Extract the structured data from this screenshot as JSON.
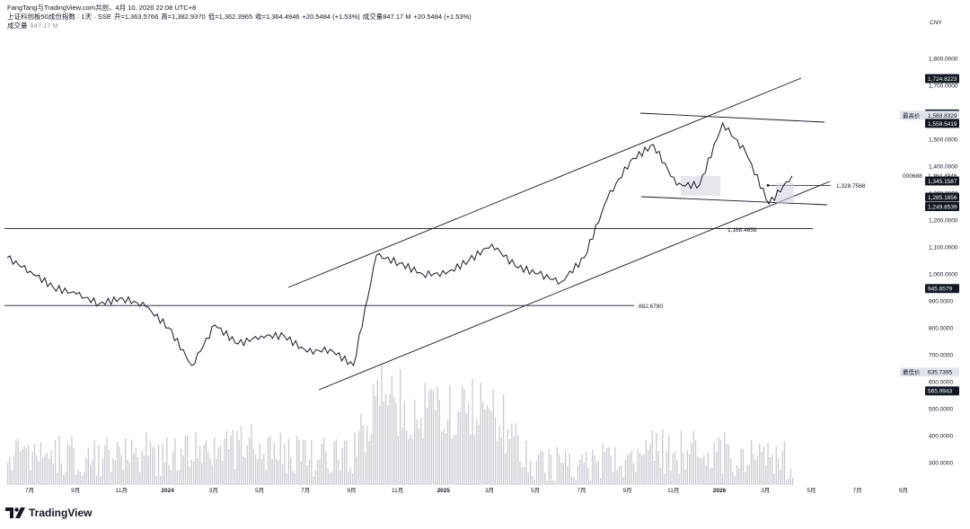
{
  "header": {
    "attribution": "FangTang与TradingView.com共创，4月 10, 2026 22:08 UTC+8",
    "symbol_line": "上证科创板50成份指数 · 1天 · SSE",
    "open": "开=1,363.5766",
    "high": "高=1,382.9370",
    "low": "低=1,362.3965",
    "close": "收=1,364.4946",
    "change": "+20.5484 (+1.53%)",
    "volume_text": "成交量847.17 M",
    "change2": "+20.5484 (+1.53%)",
    "vol_label": "成交量",
    "vol_value": "847.17 M"
  },
  "currency": "CNY",
  "logo_text": "TradingView",
  "chart_data": {
    "type": "candlestick",
    "title": "上证科创板50成份指数 · 1天 · SSE",
    "xlabel": "",
    "ylabel": "",
    "ylim": [
      250,
      1850
    ],
    "x_ticks": [
      "7月",
      "9月",
      "11月",
      "2024",
      "3月",
      "5月",
      "7月",
      "9月",
      "11月",
      "2025",
      "3月",
      "5月",
      "7月",
      "9月",
      "11月",
      "2026",
      "3月",
      "5月",
      "7月",
      "9月"
    ],
    "y_ticks": [
      "1,800.0000",
      "1,700.0000",
      "1,600.0000",
      "1,500.0000",
      "1,400.0000",
      "1,300.0000",
      "1,200.0000",
      "1,100.0000",
      "1,000.0000",
      "900.0000",
      "800.0000",
      "700.0000",
      "600.0000",
      "500.0000",
      "400.0000",
      "300.0000"
    ],
    "price_series": [
      {
        "date": "2023-06",
        "close": 1060
      },
      {
        "date": "2023-07",
        "close": 1010
      },
      {
        "date": "2023-08",
        "close": 950
      },
      {
        "date": "2023-09",
        "close": 925
      },
      {
        "date": "2023-10",
        "close": 890
      },
      {
        "date": "2023-11",
        "close": 910
      },
      {
        "date": "2023-12",
        "close": 880
      },
      {
        "date": "2024-01",
        "close": 800
      },
      {
        "date": "2024-02",
        "close": 660
      },
      {
        "date": "2024-03",
        "close": 810
      },
      {
        "date": "2024-04",
        "close": 740
      },
      {
        "date": "2024-05",
        "close": 770
      },
      {
        "date": "2024-06",
        "close": 770
      },
      {
        "date": "2024-07",
        "close": 710
      },
      {
        "date": "2024-08",
        "close": 720
      },
      {
        "date": "2024-09",
        "close": 660
      },
      {
        "date": "2024-10",
        "close": 1070
      },
      {
        "date": "2024-11",
        "close": 1040
      },
      {
        "date": "2024-12",
        "close": 1000
      },
      {
        "date": "2025-01",
        "close": 1000
      },
      {
        "date": "2025-02",
        "close": 1050
      },
      {
        "date": "2025-03",
        "close": 1110
      },
      {
        "date": "2025-04",
        "close": 1030
      },
      {
        "date": "2025-05",
        "close": 1000
      },
      {
        "date": "2025-06",
        "close": 970
      },
      {
        "date": "2025-07",
        "close": 1060
      },
      {
        "date": "2025-08",
        "close": 1280
      },
      {
        "date": "2025-09",
        "close": 1420
      },
      {
        "date": "2025-10",
        "close": 1480
      },
      {
        "date": "2025-11",
        "close": 1330
      },
      {
        "date": "2025-12",
        "close": 1330
      },
      {
        "date": "2026-01",
        "close": 1560
      },
      {
        "date": "2026-02",
        "close": 1450
      },
      {
        "date": "2026-03",
        "close": 1260
      },
      {
        "date": "2026-04",
        "close": 1364
      }
    ],
    "volume_series": [
      {
        "date": "2023-06",
        "value": 330
      },
      {
        "date": "2023-09",
        "value": 330
      },
      {
        "date": "2024-01",
        "value": 330
      },
      {
        "date": "2024-03",
        "value": 370
      },
      {
        "date": "2024-07",
        "value": 330
      },
      {
        "date": "2024-09",
        "value": 320
      },
      {
        "date": "2024-10",
        "value": 560
      },
      {
        "date": "2024-12",
        "value": 480
      },
      {
        "date": "2025-03",
        "value": 500
      },
      {
        "date": "2025-05",
        "value": 280
      },
      {
        "date": "2025-08",
        "value": 310
      },
      {
        "date": "2025-10",
        "value": 340
      },
      {
        "date": "2026-01",
        "value": 340
      },
      {
        "date": "2026-04",
        "value": 300
      }
    ],
    "horizontal_levels": [
      {
        "value": 1168.4658,
        "label": "1,168.4658"
      },
      {
        "value": 882.678,
        "label": "882.6780"
      }
    ],
    "annotation_levels": [
      {
        "value": 1328.7568,
        "label": "1,328.7568"
      }
    ],
    "price_tags": [
      {
        "value": 1724.8223,
        "label": "1,724.8223",
        "style": "dark"
      },
      {
        "value": 1593.8535,
        "label": "1,593.8535",
        "style": "dark"
      },
      {
        "value": 1588.8329,
        "label": "1,588.8329",
        "prefix": "最高价",
        "style": "light"
      },
      {
        "value": 1558.5419,
        "label": "1,558.5419",
        "style": "dark"
      },
      {
        "value": 1364.4946,
        "label": "1,364.4946",
        "prefix": "000688",
        "style": "plain"
      },
      {
        "value": 1345.1587,
        "label": "1,345.1587",
        "style": "dark"
      },
      {
        "value": 1285.1656,
        "label": "1,285.1656",
        "style": "dark"
      },
      {
        "value": 1249.8539,
        "label": "1,249.8539",
        "style": "dark"
      },
      {
        "value": 945.6579,
        "label": "945.6579",
        "style": "dark"
      },
      {
        "value": 635.7395,
        "label": "635.7395",
        "prefix": "最低价",
        "style": "light"
      },
      {
        "value": 565.9943,
        "label": "565.9943",
        "style": "dark"
      }
    ],
    "grid": false
  }
}
